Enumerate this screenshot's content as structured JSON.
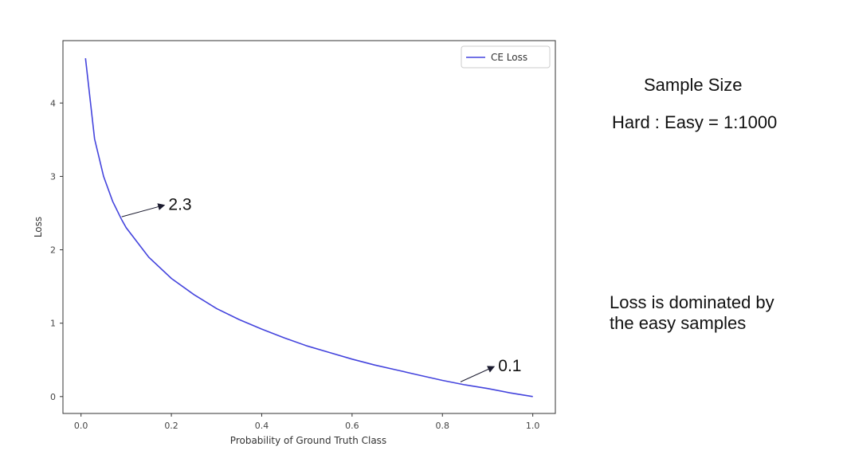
{
  "chart_data": {
    "type": "line",
    "title": "",
    "xlabel": "Probability of Ground Truth Class",
    "ylabel": "Loss",
    "xlim": [
      -0.04,
      1.05
    ],
    "ylim": [
      -0.23,
      4.85
    ],
    "xticks": [
      0.0,
      0.2,
      0.4,
      0.6,
      0.8,
      1.0
    ],
    "xtick_labels": [
      "0.0",
      "0.2",
      "0.4",
      "0.6",
      "0.8",
      "1.0"
    ],
    "yticks": [
      0,
      1,
      2,
      3,
      4
    ],
    "ytick_labels": [
      "0",
      "1",
      "2",
      "3",
      "4"
    ],
    "grid": false,
    "legend_position": "top-right",
    "series": [
      {
        "name": "CE Loss",
        "color": "#4444dd",
        "x": [
          0.01,
          0.03,
          0.05,
          0.07,
          0.09,
          0.1,
          0.15,
          0.2,
          0.25,
          0.3,
          0.35,
          0.4,
          0.45,
          0.5,
          0.55,
          0.6,
          0.65,
          0.7,
          0.75,
          0.8,
          0.85,
          0.9,
          0.95,
          1.0
        ],
        "y": [
          4.61,
          3.51,
          3.0,
          2.66,
          2.41,
          2.3,
          1.9,
          1.61,
          1.39,
          1.2,
          1.05,
          0.92,
          0.8,
          0.69,
          0.6,
          0.51,
          0.43,
          0.36,
          0.29,
          0.22,
          0.16,
          0.11,
          0.05,
          0.0
        ]
      }
    ],
    "annotations": [
      {
        "text": "2.3",
        "point": [
          0.09,
          2.45
        ],
        "text_at": [
          0.19,
          2.62
        ]
      },
      {
        "text": "0.1",
        "point": [
          0.84,
          0.2
        ],
        "text_at": [
          0.92,
          0.42
        ]
      }
    ]
  },
  "side_notes": {
    "sample_size": "Sample Size",
    "ratio": "Hard : Easy = 1:1000",
    "dominated_line1": "Loss is dominated by",
    "dominated_line2": "the easy samples"
  }
}
